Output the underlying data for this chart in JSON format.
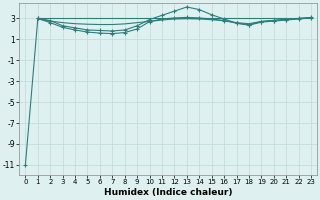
{
  "xlabel": "Humidex (Indice chaleur)",
  "bg_color": "#dff0f0",
  "grid_color": "#c0dada",
  "line_color": "#2d7d7d",
  "xlim": [
    -0.5,
    23.5
  ],
  "ylim": [
    -12,
    4.5
  ],
  "yticks": [
    3,
    1,
    -1,
    -3,
    -5,
    -7,
    -9,
    -11
  ],
  "xticks": [
    0,
    1,
    2,
    3,
    4,
    5,
    6,
    7,
    8,
    9,
    10,
    11,
    12,
    13,
    14,
    15,
    16,
    17,
    18,
    19,
    20,
    21,
    22,
    23
  ],
  "line1_x": [
    0,
    1,
    2,
    3,
    4,
    5,
    6,
    7,
    8,
    9,
    10,
    11,
    12,
    13,
    14,
    15,
    16,
    17,
    18,
    19,
    20,
    21,
    22,
    23
  ],
  "line1_y": [
    -11,
    3.0,
    2.8,
    2.3,
    2.1,
    1.9,
    1.85,
    1.8,
    1.9,
    2.3,
    2.9,
    3.3,
    3.7,
    4.1,
    3.85,
    3.35,
    2.95,
    2.55,
    2.4,
    2.7,
    2.8,
    2.9,
    3.0,
    3.1
  ],
  "line2_x": [
    1,
    2,
    3,
    4,
    5,
    6,
    7,
    8,
    9,
    10,
    11,
    12,
    13,
    14,
    15,
    16,
    17,
    18,
    19,
    20,
    21,
    22,
    23
  ],
  "line2_y": [
    3.0,
    2.6,
    2.15,
    1.9,
    1.7,
    1.6,
    1.55,
    1.65,
    2.0,
    2.7,
    2.95,
    3.05,
    3.1,
    3.05,
    2.95,
    2.8,
    2.55,
    2.35,
    2.65,
    2.75,
    2.85,
    2.95,
    3.05
  ],
  "line3_x": [
    1,
    2,
    3,
    4,
    5,
    6,
    7,
    8,
    9,
    10,
    11,
    12,
    13,
    14,
    15,
    16,
    17,
    18,
    19,
    20,
    21,
    22,
    23
  ],
  "line3_y": [
    3.0,
    3.0,
    3.0,
    3.0,
    3.0,
    3.0,
    3.0,
    3.0,
    3.0,
    3.0,
    3.0,
    3.0,
    3.0,
    3.0,
    3.0,
    3.0,
    3.0,
    3.0,
    3.0,
    3.0,
    3.0,
    3.0,
    3.0
  ],
  "line4_x": [
    1,
    2,
    3,
    4,
    5,
    6,
    7,
    8,
    9,
    10,
    11,
    12,
    13,
    14,
    15,
    16,
    17,
    18,
    19,
    20,
    21,
    22,
    23
  ],
  "line4_y": [
    2.95,
    2.75,
    2.6,
    2.5,
    2.45,
    2.42,
    2.42,
    2.48,
    2.6,
    2.72,
    2.85,
    2.95,
    2.98,
    2.95,
    2.88,
    2.78,
    2.6,
    2.5,
    2.72,
    2.82,
    2.92,
    3.0,
    3.08
  ]
}
